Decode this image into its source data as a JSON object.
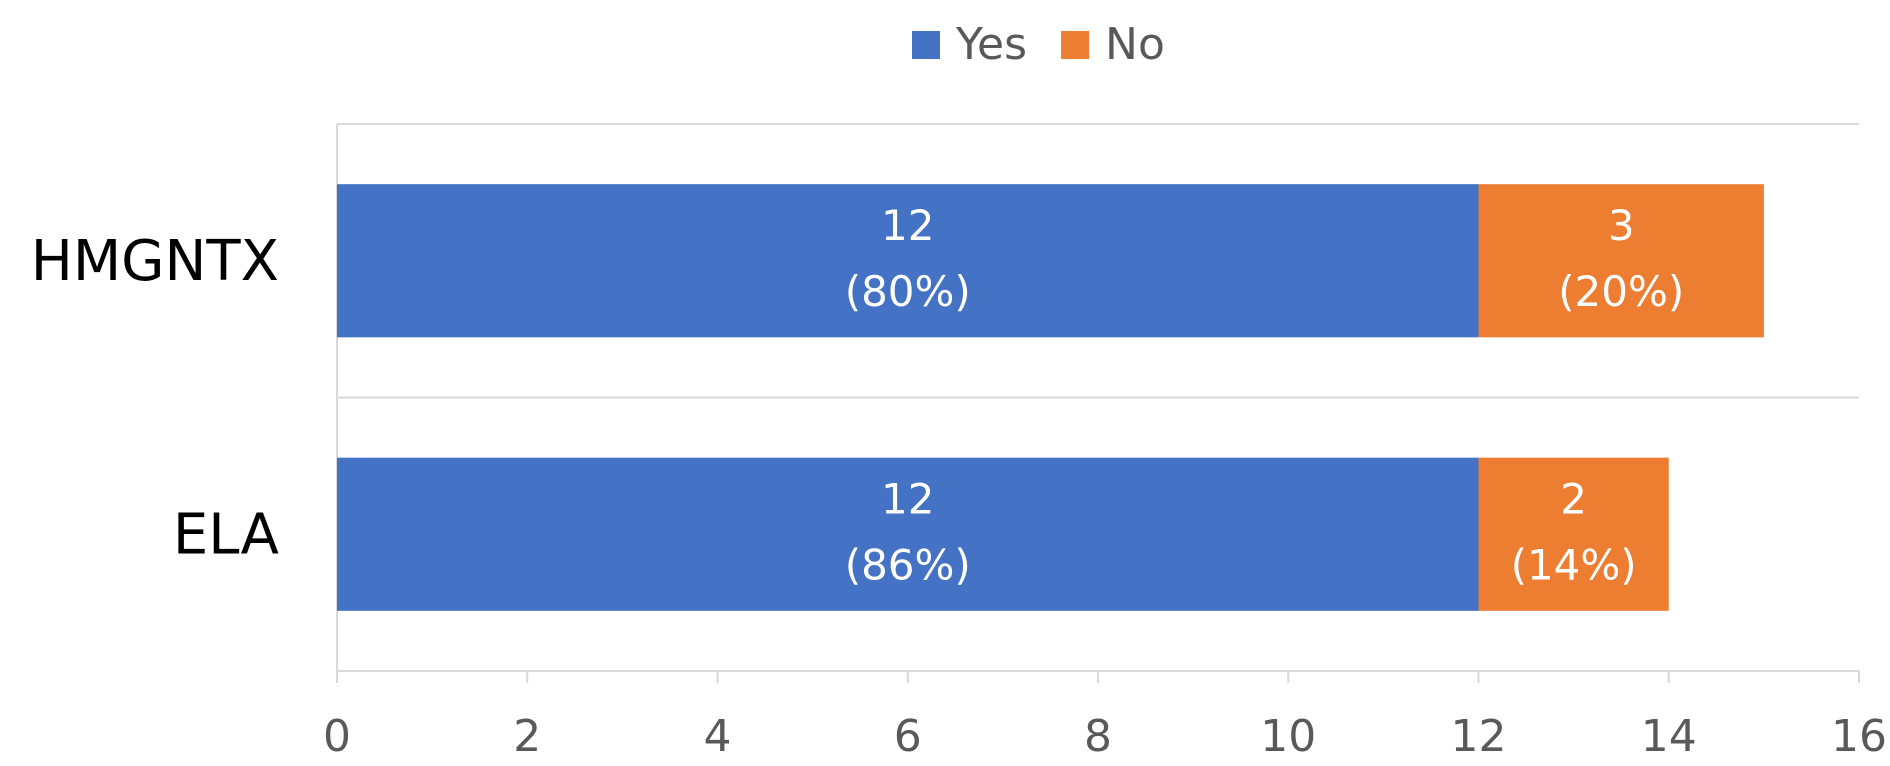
{
  "chart_data": {
    "type": "stacked_bar_horizontal",
    "categories": [
      "HMGNTX",
      "ELA"
    ],
    "series": [
      {
        "name": "Yes",
        "color": "#4472c4",
        "values": [
          12,
          12
        ],
        "value_labels": [
          "12\n(80%)",
          "12\n(86%)"
        ]
      },
      {
        "name": "No",
        "color": "#ed7d31",
        "values": [
          3,
          2
        ],
        "value_labels": [
          "3\n(20%)",
          "2\n(14%)"
        ]
      }
    ],
    "xlim": [
      0,
      16
    ],
    "xticks": [
      0,
      2,
      4,
      6,
      8,
      10,
      12,
      14,
      16
    ],
    "legend": "top",
    "grid": false
  }
}
